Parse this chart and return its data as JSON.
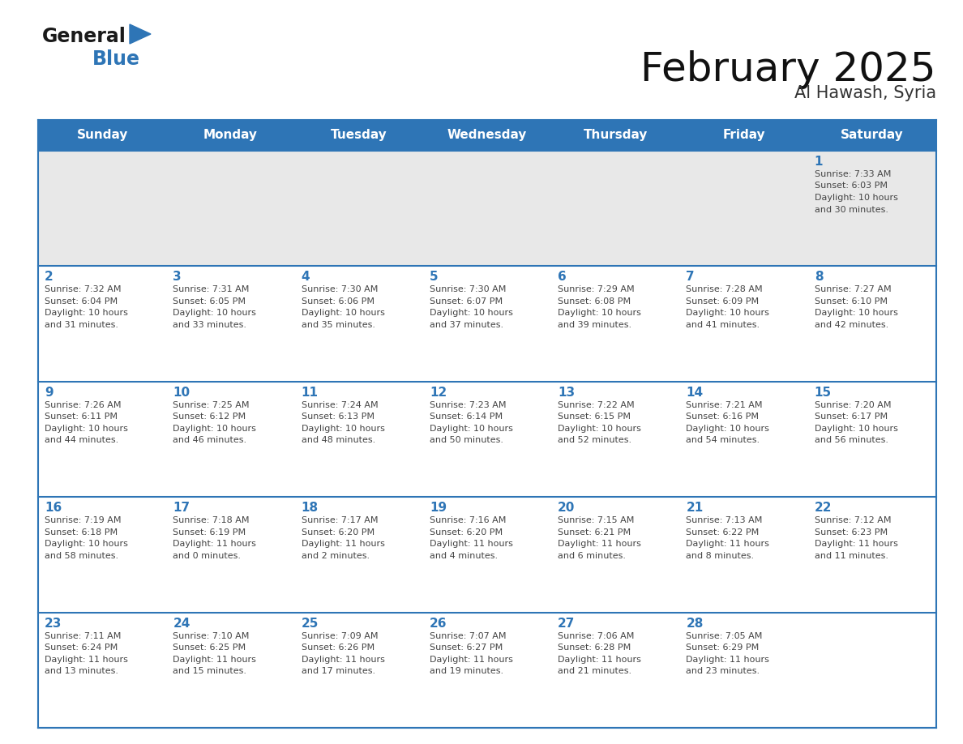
{
  "title": "February 2025",
  "subtitle": "Al Hawash, Syria",
  "header_bg": "#2e75b6",
  "header_text_color": "#ffffff",
  "row0_bg": "#e8e8e8",
  "cell_bg": "#ffffff",
  "day_number_color": "#2e75b6",
  "text_color": "#444444",
  "line_color": "#2e75b6",
  "days_of_week": [
    "Sunday",
    "Monday",
    "Tuesday",
    "Wednesday",
    "Thursday",
    "Friday",
    "Saturday"
  ],
  "calendar_data": [
    [
      null,
      null,
      null,
      null,
      null,
      null,
      {
        "day": "1",
        "sunrise": "7:33 AM",
        "sunset": "6:03 PM",
        "daylight_line1": "10 hours",
        "daylight_line2": "and 30 minutes."
      }
    ],
    [
      {
        "day": "2",
        "sunrise": "7:32 AM",
        "sunset": "6:04 PM",
        "daylight_line1": "10 hours",
        "daylight_line2": "and 31 minutes."
      },
      {
        "day": "3",
        "sunrise": "7:31 AM",
        "sunset": "6:05 PM",
        "daylight_line1": "10 hours",
        "daylight_line2": "and 33 minutes."
      },
      {
        "day": "4",
        "sunrise": "7:30 AM",
        "sunset": "6:06 PM",
        "daylight_line1": "10 hours",
        "daylight_line2": "and 35 minutes."
      },
      {
        "day": "5",
        "sunrise": "7:30 AM",
        "sunset": "6:07 PM",
        "daylight_line1": "10 hours",
        "daylight_line2": "and 37 minutes."
      },
      {
        "day": "6",
        "sunrise": "7:29 AM",
        "sunset": "6:08 PM",
        "daylight_line1": "10 hours",
        "daylight_line2": "and 39 minutes."
      },
      {
        "day": "7",
        "sunrise": "7:28 AM",
        "sunset": "6:09 PM",
        "daylight_line1": "10 hours",
        "daylight_line2": "and 41 minutes."
      },
      {
        "day": "8",
        "sunrise": "7:27 AM",
        "sunset": "6:10 PM",
        "daylight_line1": "10 hours",
        "daylight_line2": "and 42 minutes."
      }
    ],
    [
      {
        "day": "9",
        "sunrise": "7:26 AM",
        "sunset": "6:11 PM",
        "daylight_line1": "10 hours",
        "daylight_line2": "and 44 minutes."
      },
      {
        "day": "10",
        "sunrise": "7:25 AM",
        "sunset": "6:12 PM",
        "daylight_line1": "10 hours",
        "daylight_line2": "and 46 minutes."
      },
      {
        "day": "11",
        "sunrise": "7:24 AM",
        "sunset": "6:13 PM",
        "daylight_line1": "10 hours",
        "daylight_line2": "and 48 minutes."
      },
      {
        "day": "12",
        "sunrise": "7:23 AM",
        "sunset": "6:14 PM",
        "daylight_line1": "10 hours",
        "daylight_line2": "and 50 minutes."
      },
      {
        "day": "13",
        "sunrise": "7:22 AM",
        "sunset": "6:15 PM",
        "daylight_line1": "10 hours",
        "daylight_line2": "and 52 minutes."
      },
      {
        "day": "14",
        "sunrise": "7:21 AM",
        "sunset": "6:16 PM",
        "daylight_line1": "10 hours",
        "daylight_line2": "and 54 minutes."
      },
      {
        "day": "15",
        "sunrise": "7:20 AM",
        "sunset": "6:17 PM",
        "daylight_line1": "10 hours",
        "daylight_line2": "and 56 minutes."
      }
    ],
    [
      {
        "day": "16",
        "sunrise": "7:19 AM",
        "sunset": "6:18 PM",
        "daylight_line1": "10 hours",
        "daylight_line2": "and 58 minutes."
      },
      {
        "day": "17",
        "sunrise": "7:18 AM",
        "sunset": "6:19 PM",
        "daylight_line1": "11 hours",
        "daylight_line2": "and 0 minutes."
      },
      {
        "day": "18",
        "sunrise": "7:17 AM",
        "sunset": "6:20 PM",
        "daylight_line1": "11 hours",
        "daylight_line2": "and 2 minutes."
      },
      {
        "day": "19",
        "sunrise": "7:16 AM",
        "sunset": "6:20 PM",
        "daylight_line1": "11 hours",
        "daylight_line2": "and 4 minutes."
      },
      {
        "day": "20",
        "sunrise": "7:15 AM",
        "sunset": "6:21 PM",
        "daylight_line1": "11 hours",
        "daylight_line2": "and 6 minutes."
      },
      {
        "day": "21",
        "sunrise": "7:13 AM",
        "sunset": "6:22 PM",
        "daylight_line1": "11 hours",
        "daylight_line2": "and 8 minutes."
      },
      {
        "day": "22",
        "sunrise": "7:12 AM",
        "sunset": "6:23 PM",
        "daylight_line1": "11 hours",
        "daylight_line2": "and 11 minutes."
      }
    ],
    [
      {
        "day": "23",
        "sunrise": "7:11 AM",
        "sunset": "6:24 PM",
        "daylight_line1": "11 hours",
        "daylight_line2": "and 13 minutes."
      },
      {
        "day": "24",
        "sunrise": "7:10 AM",
        "sunset": "6:25 PM",
        "daylight_line1": "11 hours",
        "daylight_line2": "and 15 minutes."
      },
      {
        "day": "25",
        "sunrise": "7:09 AM",
        "sunset": "6:26 PM",
        "daylight_line1": "11 hours",
        "daylight_line2": "and 17 minutes."
      },
      {
        "day": "26",
        "sunrise": "7:07 AM",
        "sunset": "6:27 PM",
        "daylight_line1": "11 hours",
        "daylight_line2": "and 19 minutes."
      },
      {
        "day": "27",
        "sunrise": "7:06 AM",
        "sunset": "6:28 PM",
        "daylight_line1": "11 hours",
        "daylight_line2": "and 21 minutes."
      },
      {
        "day": "28",
        "sunrise": "7:05 AM",
        "sunset": "6:29 PM",
        "daylight_line1": "11 hours",
        "daylight_line2": "and 23 minutes."
      },
      null
    ]
  ],
  "logo_text_general": "General",
  "logo_text_blue": "Blue",
  "logo_color_general": "#1a1a1a",
  "logo_color_blue": "#2e75b6",
  "logo_triangle_color": "#2e75b6",
  "title_fontsize": 36,
  "subtitle_fontsize": 15,
  "dow_fontsize": 11,
  "day_num_fontsize": 11,
  "cell_text_fontsize": 8
}
